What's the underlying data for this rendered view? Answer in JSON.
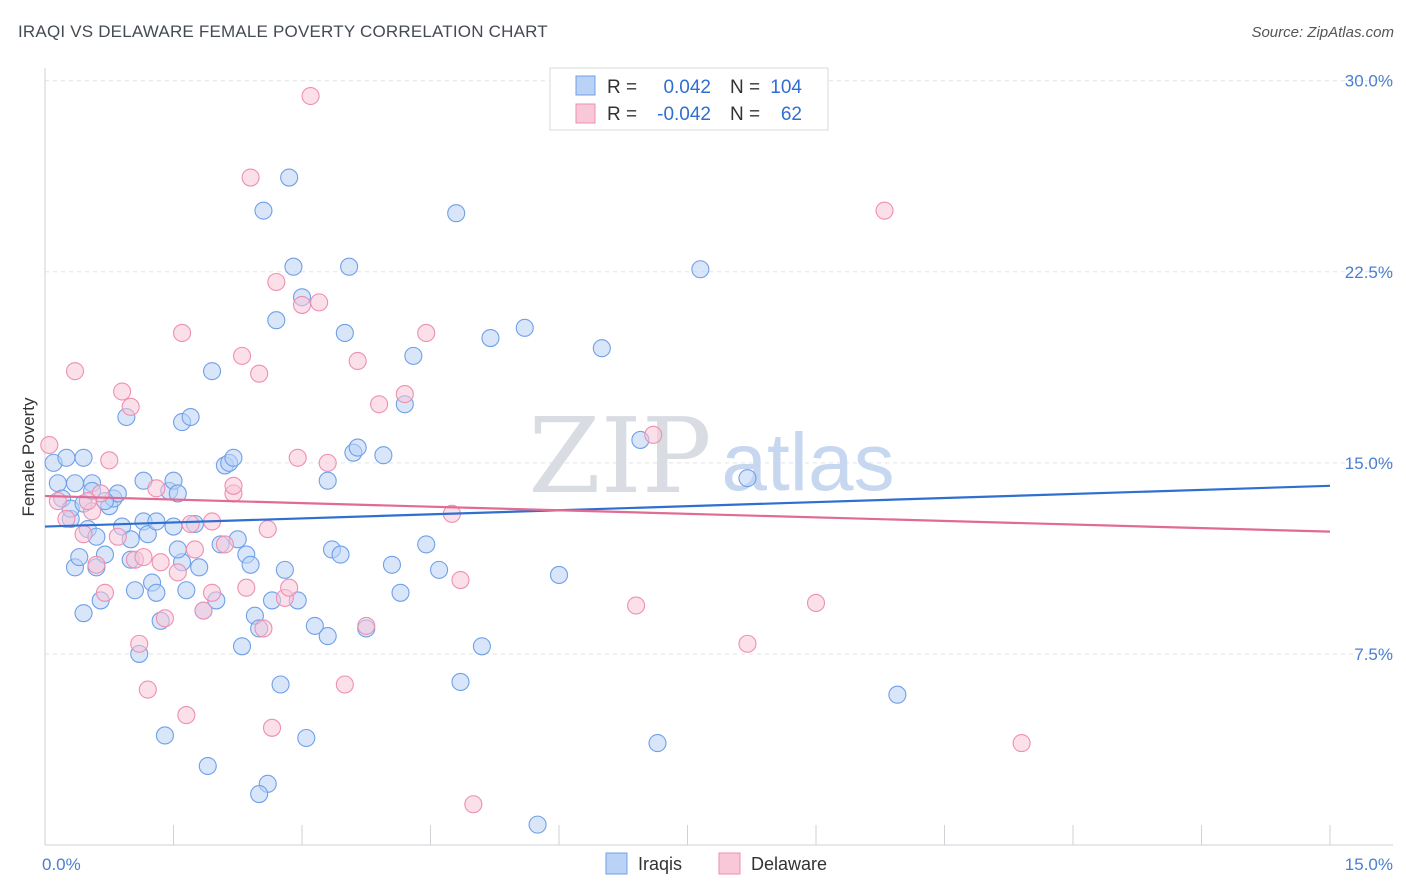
{
  "title": "IRAQI VS DELAWARE FEMALE POVERTY CORRELATION CHART",
  "source": "Source: ZipAtlas.com",
  "watermark": {
    "zip": "ZIP",
    "atlas": "atlas"
  },
  "colors": {
    "iraqis": "#6fa0e8",
    "iraqis_fill": "#b9d2f5",
    "delaware": "#ef8fb0",
    "delaware_fill": "#f8c7d8",
    "iraqis_line": "#2f6fd0",
    "delaware_line": "#e06b95",
    "value_text": "#2f6fd0"
  },
  "legend": {
    "rows": [
      {
        "r_label": "R =",
        "r_value": "0.042",
        "n_label": "N =",
        "n_value": "104"
      },
      {
        "r_label": "R =",
        "r_value": "-0.042",
        "n_label": "N =",
        "n_value": "62"
      }
    ]
  },
  "chart_data": {
    "type": "scatter",
    "ylabel": "Female Poverty",
    "xlabel": "",
    "xlim": [
      0,
      15
    ],
    "ylim": [
      0,
      30.5
    ],
    "x_tick_labels": [
      "0.0%",
      "15.0%"
    ],
    "y_ticks": [
      7.5,
      15.0,
      22.5,
      30.0
    ],
    "y_tick_labels": [
      "7.5%",
      "15.0%",
      "22.5%",
      "30.0%"
    ],
    "grid": true,
    "legend_position": "top-center",
    "series": [
      {
        "name": "Iraqis",
        "trend": [
          [
            0,
            12.5
          ],
          [
            15,
            14.1
          ]
        ],
        "points": [
          [
            0.1,
            15.0
          ],
          [
            0.15,
            14.2
          ],
          [
            0.2,
            13.6
          ],
          [
            0.25,
            15.2
          ],
          [
            0.3,
            12.8
          ],
          [
            0.3,
            13.2
          ],
          [
            0.35,
            14.2
          ],
          [
            0.35,
            10.9
          ],
          [
            0.4,
            11.3
          ],
          [
            0.45,
            13.4
          ],
          [
            0.45,
            9.1
          ],
          [
            0.5,
            12.4
          ],
          [
            0.55,
            14.2
          ],
          [
            0.55,
            13.9
          ],
          [
            0.6,
            10.9
          ],
          [
            0.6,
            12.1
          ],
          [
            0.65,
            9.6
          ],
          [
            0.7,
            11.4
          ],
          [
            0.75,
            13.3
          ],
          [
            0.8,
            13.6
          ],
          [
            0.85,
            13.8
          ],
          [
            0.9,
            12.5
          ],
          [
            0.95,
            16.8
          ],
          [
            1.0,
            12.0
          ],
          [
            1.0,
            11.2
          ],
          [
            1.05,
            10.0
          ],
          [
            1.1,
            7.5
          ],
          [
            1.15,
            12.7
          ],
          [
            1.15,
            14.3
          ],
          [
            1.2,
            12.2
          ],
          [
            1.25,
            10.3
          ],
          [
            1.3,
            9.9
          ],
          [
            1.35,
            8.8
          ],
          [
            1.4,
            4.3
          ],
          [
            1.45,
            13.9
          ],
          [
            1.5,
            14.3
          ],
          [
            1.5,
            12.5
          ],
          [
            1.55,
            13.8
          ],
          [
            1.6,
            16.6
          ],
          [
            1.6,
            11.1
          ],
          [
            1.65,
            10.0
          ],
          [
            1.7,
            16.8
          ],
          [
            1.75,
            12.6
          ],
          [
            1.8,
            10.9
          ],
          [
            1.85,
            9.2
          ],
          [
            1.9,
            3.1
          ],
          [
            1.95,
            18.6
          ],
          [
            2.0,
            9.6
          ],
          [
            2.05,
            11.8
          ],
          [
            2.1,
            14.9
          ],
          [
            2.15,
            15.0
          ],
          [
            2.2,
            15.2
          ],
          [
            2.25,
            12.0
          ],
          [
            2.3,
            7.8
          ],
          [
            2.35,
            11.4
          ],
          [
            2.4,
            11.0
          ],
          [
            2.45,
            9.0
          ],
          [
            2.5,
            8.5
          ],
          [
            2.55,
            24.9
          ],
          [
            2.6,
            2.4
          ],
          [
            2.65,
            9.6
          ],
          [
            2.7,
            20.6
          ],
          [
            2.75,
            6.3
          ],
          [
            2.8,
            10.8
          ],
          [
            2.85,
            26.2
          ],
          [
            2.9,
            22.7
          ],
          [
            3.0,
            21.5
          ],
          [
            3.05,
            4.2
          ],
          [
            3.15,
            8.6
          ],
          [
            3.3,
            14.3
          ],
          [
            3.35,
            11.6
          ],
          [
            3.45,
            11.4
          ],
          [
            3.5,
            20.1
          ],
          [
            3.55,
            22.7
          ],
          [
            3.6,
            15.4
          ],
          [
            3.65,
            15.6
          ],
          [
            3.75,
            8.5
          ],
          [
            3.95,
            15.3
          ],
          [
            4.05,
            11.0
          ],
          [
            4.15,
            9.9
          ],
          [
            4.2,
            17.3
          ],
          [
            4.3,
            19.2
          ],
          [
            4.45,
            11.8
          ],
          [
            4.6,
            10.8
          ],
          [
            4.8,
            24.8
          ],
          [
            4.85,
            6.4
          ],
          [
            5.1,
            7.8
          ],
          [
            5.2,
            19.9
          ],
          [
            5.6,
            20.3
          ],
          [
            5.75,
            0.8
          ],
          [
            6.0,
            10.6
          ],
          [
            6.5,
            19.5
          ],
          [
            6.95,
            15.9
          ],
          [
            7.15,
            4.0
          ],
          [
            7.65,
            22.6
          ],
          [
            8.2,
            14.4
          ],
          [
            9.95,
            5.9
          ],
          [
            0.7,
            13.5
          ],
          [
            1.3,
            12.7
          ],
          [
            2.5,
            2.0
          ],
          [
            1.55,
            11.6
          ],
          [
            0.45,
            15.2
          ],
          [
            2.95,
            9.6
          ],
          [
            3.3,
            8.2
          ]
        ]
      },
      {
        "name": "Delaware",
        "trend": [
          [
            0,
            13.7
          ],
          [
            15,
            12.3
          ]
        ],
        "points": [
          [
            0.05,
            15.7
          ],
          [
            0.15,
            13.5
          ],
          [
            0.25,
            12.8
          ],
          [
            0.35,
            18.6
          ],
          [
            0.45,
            12.2
          ],
          [
            0.55,
            13.1
          ],
          [
            0.6,
            11.0
          ],
          [
            0.65,
            13.8
          ],
          [
            0.7,
            9.9
          ],
          [
            0.75,
            15.1
          ],
          [
            0.85,
            12.1
          ],
          [
            0.9,
            17.8
          ],
          [
            1.0,
            17.2
          ],
          [
            1.05,
            11.2
          ],
          [
            1.1,
            7.9
          ],
          [
            1.15,
            11.3
          ],
          [
            1.2,
            6.1
          ],
          [
            1.3,
            14.0
          ],
          [
            1.35,
            11.1
          ],
          [
            1.4,
            8.9
          ],
          [
            1.55,
            10.7
          ],
          [
            1.6,
            20.1
          ],
          [
            1.65,
            5.1
          ],
          [
            1.7,
            12.6
          ],
          [
            1.75,
            11.6
          ],
          [
            1.85,
            9.2
          ],
          [
            1.95,
            12.7
          ],
          [
            2.1,
            11.8
          ],
          [
            2.2,
            13.8
          ],
          [
            2.3,
            19.2
          ],
          [
            2.35,
            10.1
          ],
          [
            2.4,
            26.2
          ],
          [
            2.5,
            18.5
          ],
          [
            2.55,
            8.5
          ],
          [
            2.6,
            12.4
          ],
          [
            2.65,
            4.6
          ],
          [
            2.7,
            22.1
          ],
          [
            2.8,
            9.7
          ],
          [
            2.85,
            10.1
          ],
          [
            2.95,
            15.2
          ],
          [
            3.0,
            21.2
          ],
          [
            3.1,
            29.4
          ],
          [
            3.2,
            21.3
          ],
          [
            3.3,
            15.0
          ],
          [
            3.5,
            6.3
          ],
          [
            3.65,
            19.0
          ],
          [
            3.75,
            8.6
          ],
          [
            3.9,
            17.3
          ],
          [
            4.2,
            17.7
          ],
          [
            4.45,
            20.1
          ],
          [
            4.75,
            13.0
          ],
          [
            4.85,
            10.4
          ],
          [
            5.0,
            1.6
          ],
          [
            6.9,
            9.4
          ],
          [
            7.1,
            16.1
          ],
          [
            8.2,
            7.9
          ],
          [
            9.0,
            9.5
          ],
          [
            9.8,
            24.9
          ],
          [
            11.4,
            4.0
          ],
          [
            2.2,
            14.1
          ],
          [
            0.5,
            13.5
          ],
          [
            1.95,
            9.9
          ]
        ]
      }
    ]
  },
  "bottom_legend": [
    "Iraqis",
    "Delaware"
  ]
}
